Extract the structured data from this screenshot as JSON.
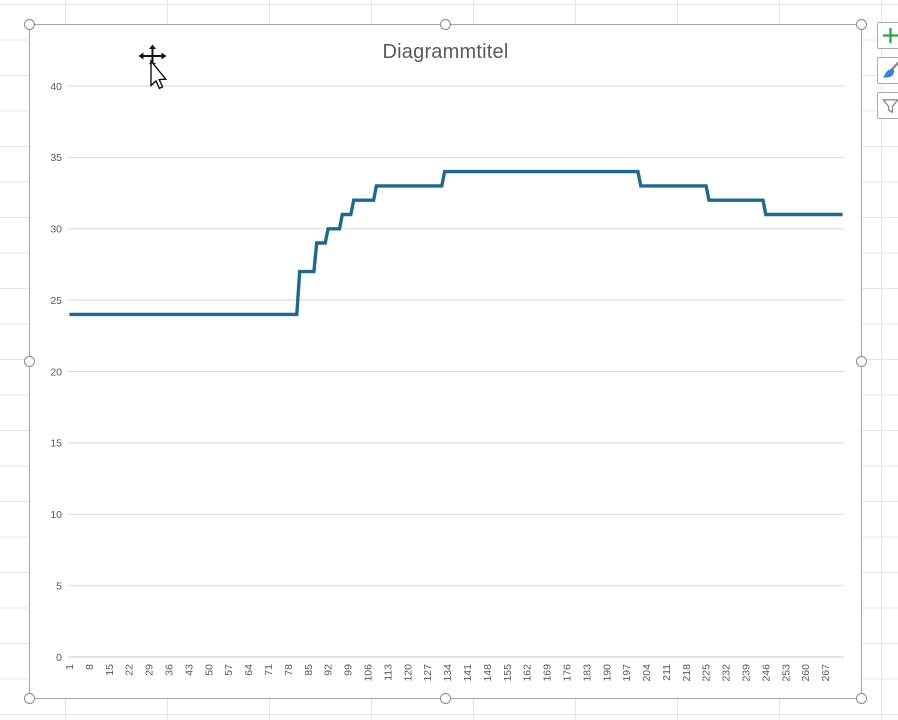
{
  "chart": {
    "title": "Diagrammtitel"
  },
  "chart_data": {
    "type": "line",
    "title": "Diagrammtitel",
    "x_range": [
      1,
      273
    ],
    "x_tick_labels": [
      1,
      8,
      15,
      22,
      29,
      36,
      43,
      50,
      57,
      64,
      71,
      78,
      85,
      92,
      99,
      106,
      113,
      120,
      127,
      134,
      141,
      148,
      155,
      162,
      169,
      176,
      183,
      190,
      197,
      204,
      211,
      218,
      225,
      232,
      239,
      246,
      253,
      260,
      267
    ],
    "y_ticks": [
      0,
      5,
      10,
      15,
      20,
      25,
      30,
      35,
      40
    ],
    "ylim": [
      0,
      40
    ],
    "grid": "horizontal-major",
    "legend": "none",
    "series": [
      {
        "color": "#21688E",
        "segments": [
          {
            "from": 1,
            "to": 81,
            "value": 24
          },
          {
            "from": 82,
            "to": 87,
            "value": 27
          },
          {
            "from": 88,
            "to": 91,
            "value": 29
          },
          {
            "from": 92,
            "to": 96,
            "value": 30
          },
          {
            "from": 97,
            "to": 100,
            "value": 31
          },
          {
            "from": 101,
            "to": 108,
            "value": 32
          },
          {
            "from": 109,
            "to": 132,
            "value": 33
          },
          {
            "from": 133,
            "to": 201,
            "value": 34
          },
          {
            "from": 202,
            "to": 225,
            "value": 33
          },
          {
            "from": 226,
            "to": 245,
            "value": 32
          },
          {
            "from": 246,
            "to": 273,
            "value": 31
          }
        ]
      }
    ]
  },
  "colors": {
    "line": "#21688E",
    "gridline": "#d9d9d9",
    "axis_line": "#c9c9c9",
    "axis_text": "#595959",
    "title_text": "#595959",
    "plus_icon": "#28a348",
    "brush_icon": "#3b86c8",
    "icon_gray": "#8c8c8c"
  },
  "side_toolbar": {
    "buttons": [
      {
        "label": "chart-elements"
      },
      {
        "label": "chart-styles"
      },
      {
        "label": "chart-filters"
      }
    ]
  }
}
